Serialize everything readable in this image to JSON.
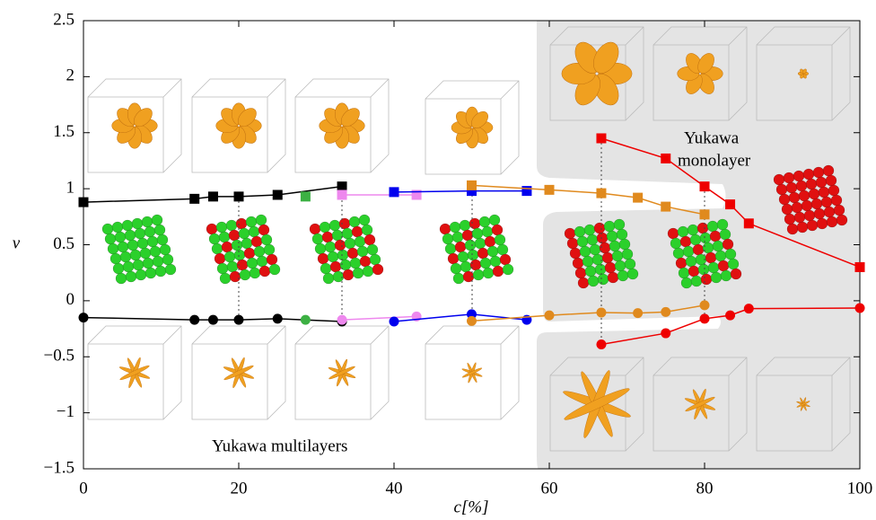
{
  "chart_data": {
    "type": "line",
    "x_label": "c[%]",
    "y_label": "ν",
    "xlim": [
      0,
      100
    ],
    "ylim": [
      -1.5,
      2.5
    ],
    "xticks": [
      0,
      20,
      40,
      60,
      80,
      100
    ],
    "yticks": [
      {
        "value": -1.5,
        "label": "−1.5"
      },
      {
        "value": -1,
        "label": "−1"
      },
      {
        "value": -0.5,
        "label": "−0.5"
      },
      0,
      0.5,
      1,
      1.5,
      2,
      2.5
    ],
    "annotations": [
      "Yukawa",
      "monolayer",
      "Yukawa multilayers"
    ],
    "series": [
      {
        "color": "#000000",
        "marker": "square",
        "x": [
          0,
          14.3,
          16.7,
          20,
          25,
          33.3
        ],
        "values": [
          0.88,
          0.91,
          0.93,
          0.93,
          0.945,
          1.02
        ]
      },
      {
        "color": "#3cb043",
        "marker": "square",
        "x": [
          28.6
        ],
        "values": [
          0.93
        ]
      },
      {
        "color": "#e8e",
        "marker": "square",
        "x": [
          33.3,
          42.9
        ],
        "values": [
          0.945,
          0.945
        ]
      },
      {
        "color": "#0000ee",
        "marker": "square",
        "x": [
          40,
          50,
          57.1
        ],
        "values": [
          0.97,
          0.98,
          0.98
        ]
      },
      {
        "color": "#e08a1e",
        "marker": "square",
        "x": [
          50,
          60,
          66.7,
          71.4,
          75,
          80
        ],
        "values": [
          1.03,
          0.99,
          0.96,
          0.92,
          0.84,
          0.77
        ]
      },
      {
        "color": "#ee0000",
        "marker": "square",
        "x": [
          66.7,
          75,
          80,
          83.3,
          85.7,
          100
        ],
        "values": [
          1.45,
          1.27,
          1.02,
          0.86,
          0.69,
          0.3
        ]
      },
      {
        "color": "#000000",
        "marker": "circle",
        "x": [
          0,
          14.3,
          16.7,
          20,
          25,
          33.3
        ],
        "values": [
          -0.15,
          -0.17,
          -0.17,
          -0.17,
          -0.16,
          -0.185
        ]
      },
      {
        "color": "#3cb043",
        "marker": "circle",
        "x": [
          28.6
        ],
        "values": [
          -0.17
        ]
      },
      {
        "color": "#e8e",
        "marker": "circle",
        "x": [
          33.3,
          42.9
        ],
        "values": [
          -0.17,
          -0.14
        ]
      },
      {
        "color": "#0000ee",
        "marker": "circle",
        "x": [
          40,
          50,
          57.1
        ],
        "values": [
          -0.185,
          -0.12,
          -0.17
        ]
      },
      {
        "color": "#e08a1e",
        "marker": "circle",
        "x": [
          50,
          60,
          66.7,
          71.4,
          75,
          80
        ],
        "values": [
          -0.18,
          -0.13,
          -0.105,
          -0.11,
          -0.1,
          -0.04
        ]
      },
      {
        "color": "#ee0000",
        "marker": "circle",
        "x": [
          66.7,
          75,
          80,
          83.3,
          85.7,
          100
        ],
        "values": [
          -0.39,
          -0.29,
          -0.16,
          -0.13,
          -0.07,
          -0.065
        ]
      }
    ]
  }
}
